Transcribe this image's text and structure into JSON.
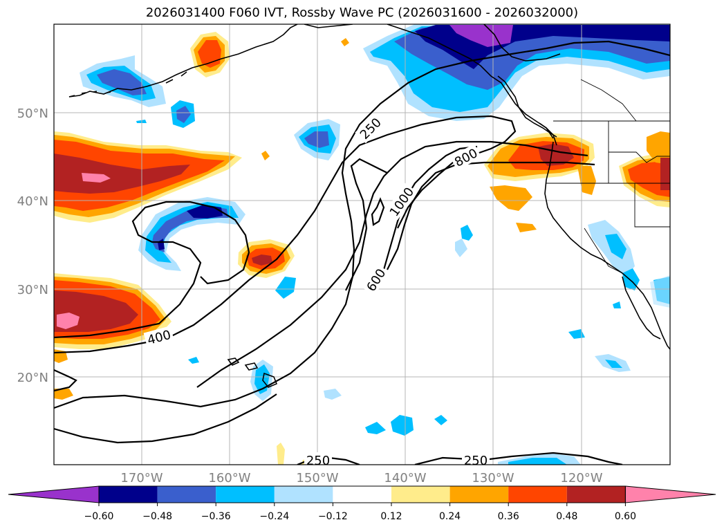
{
  "title": "2026031400 F060 IVT, Rossby Wave PC (2026031600 - 2026032000)",
  "map": {
    "lat_labels": [
      "50°N",
      "40°N",
      "30°N",
      "20°N"
    ],
    "lon_labels": [
      "170°W",
      "160°W",
      "150°W",
      "140°W",
      "130°W",
      "120°W"
    ]
  },
  "contour_labels": [
    "250",
    "800",
    "1000",
    "600",
    "400",
    "250",
    "250"
  ],
  "colorbar": {
    "colors": [
      "#9932cc",
      "#00008b",
      "#3a5fcd",
      "#00bfff",
      "#b0e2ff",
      "#ffffff",
      "#ffec8b",
      "#ffa500",
      "#ff4500",
      "#b22222",
      "#ff82ab"
    ],
    "tick_labels": [
      "−0.60",
      "−0.48",
      "−0.36",
      "−0.24",
      "−0.12",
      "0.12",
      "0.24",
      "0.36",
      "0.48",
      "0.60"
    ]
  }
}
